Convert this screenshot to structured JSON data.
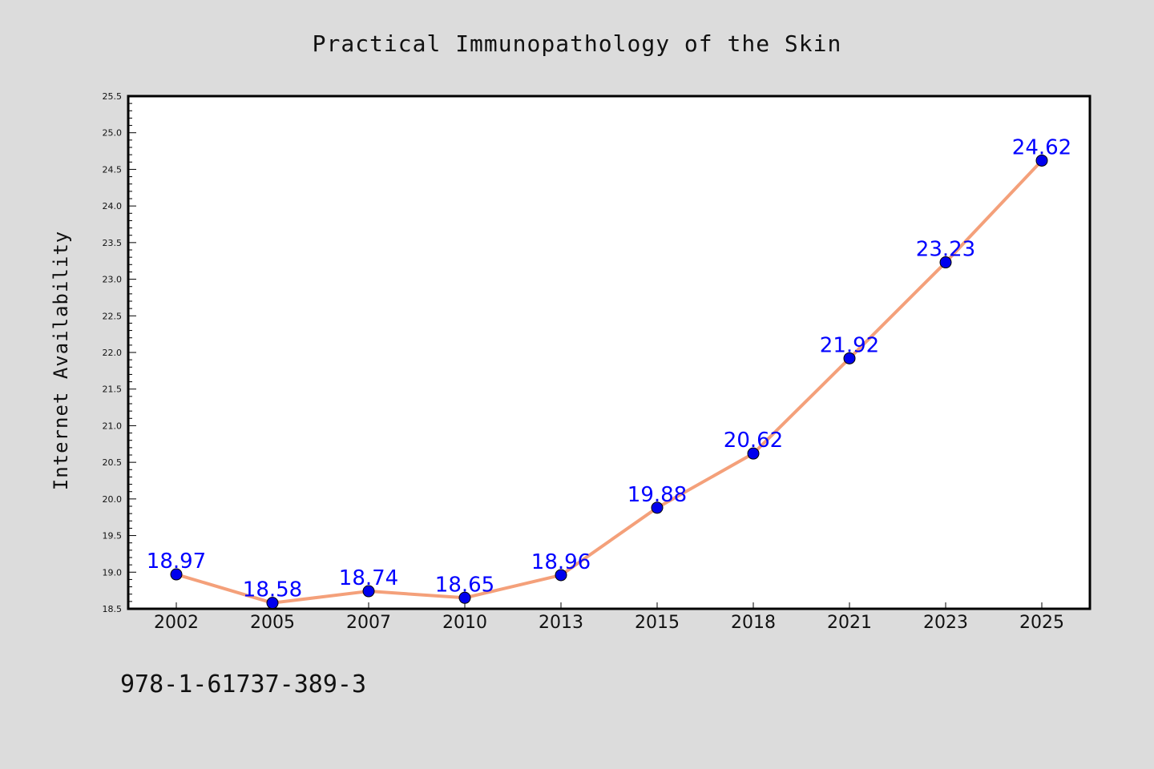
{
  "chart_data": {
    "type": "line",
    "title": "Practical Immunopathology of the Skin",
    "xlabel": "",
    "ylabel": "Internet Availability",
    "categories": [
      "2002",
      "2005",
      "2007",
      "2010",
      "2013",
      "2015",
      "2018",
      "2021",
      "2023",
      "2025"
    ],
    "series": [
      {
        "values": [
          18.97,
          18.58,
          18.74,
          18.65,
          18.96,
          19.88,
          20.62,
          21.92,
          23.23,
          24.62
        ],
        "labels": [
          "18.97",
          "18.58",
          "18.74",
          "18.65",
          "18.96",
          "19.88",
          "20.62",
          "21.92",
          "23.23",
          "24.62"
        ]
      }
    ],
    "ylim": [
      18.5,
      25.5
    ],
    "yticks": [
      "18.5",
      "19.0",
      "19.5",
      "20.0",
      "20.5",
      "21.0",
      "21.5",
      "22.0",
      "22.5",
      "23.0",
      "23.5",
      "24.0",
      "24.5",
      "25.0",
      "25.5"
    ],
    "grid": false,
    "legend": "none",
    "colors": {
      "line": "#f4a07a",
      "marker": "#0000ee",
      "label": "#0000ff",
      "plot_bg": "#ffffff",
      "page_bg": "#dcdcdc"
    }
  },
  "footer": {
    "isbn": "978-1-61737-389-3"
  }
}
